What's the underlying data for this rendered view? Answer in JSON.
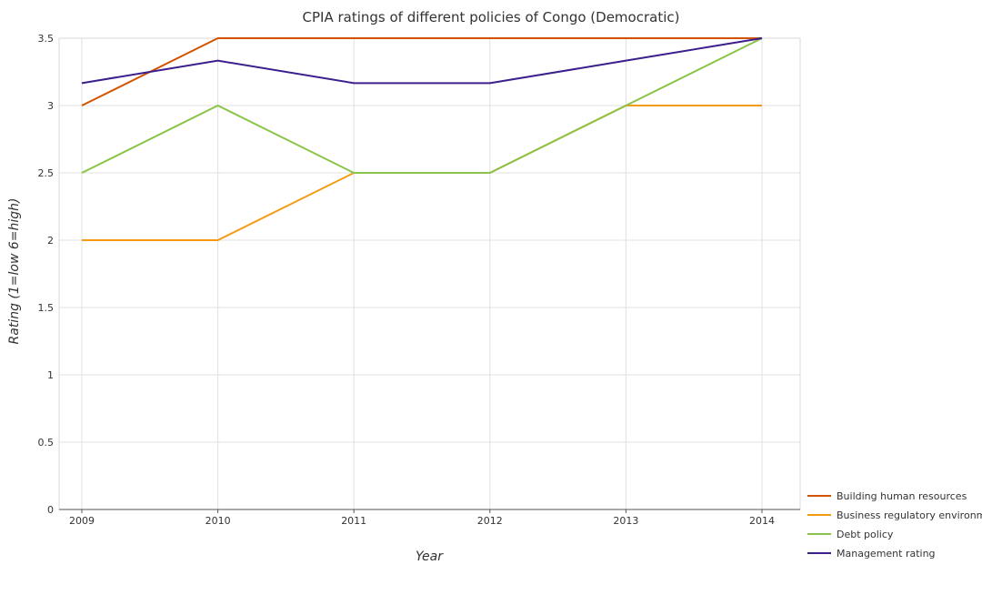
{
  "chart_data": {
    "type": "line",
    "title": "CPIA ratings of different policies of Congo (Democratic)",
    "xlabel": "Year",
    "ylabel": "Rating (1=low 6=high)",
    "categories": [
      "2009",
      "2010",
      "2011",
      "2012",
      "2013",
      "2014"
    ],
    "ylim": [
      0,
      3.5
    ],
    "yticks": [
      "0",
      "0.5",
      "1",
      "1.5",
      "2",
      "2.5",
      "3",
      "3.5"
    ],
    "grid": true,
    "legend_position": "bottom-right",
    "series": [
      {
        "name": "Building human resources",
        "color": "#d35400",
        "values": [
          3.0,
          3.5,
          3.5,
          3.5,
          3.5,
          3.5
        ]
      },
      {
        "name": "Business regulatory environment",
        "color": "#f39c12",
        "values": [
          2.0,
          2.0,
          2.5,
          2.5,
          3.0,
          3.0
        ]
      },
      {
        "name": "Debt policy",
        "color": "#8bc34a",
        "values": [
          2.5,
          3.0,
          2.5,
          2.5,
          3.0,
          3.5
        ]
      },
      {
        "name": "Management rating",
        "color": "#3d1e8c",
        "values": [
          3.1667,
          3.3333,
          3.1667,
          3.1667,
          3.3333,
          3.5
        ]
      }
    ]
  }
}
